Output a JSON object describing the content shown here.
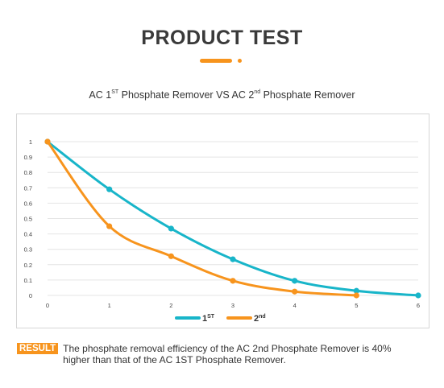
{
  "header": {
    "title": "PRODUCT TEST",
    "accent_color": "#F7941D"
  },
  "chart_data": {
    "type": "line",
    "title_parts": [
      "AC 1",
      "ST",
      " Phosphate Remover VS AC 2",
      "nd",
      " Phosphate Remover"
    ],
    "x": [
      0,
      1,
      2,
      3,
      4,
      5,
      6
    ],
    "x_ticks": [
      "0",
      "1",
      "2",
      "3",
      "4",
      "5",
      "6"
    ],
    "y_ticks": [
      "0",
      "0.1",
      "0.2",
      "0.3",
      "0.4",
      "0.5",
      "0.6",
      "0.7",
      "0.8",
      "0.9",
      "1"
    ],
    "ylim": [
      0,
      1
    ],
    "xlim": [
      0,
      6
    ],
    "grid": true,
    "legend_position": "bottom",
    "series": [
      {
        "name": "1",
        "name_sup": "ST",
        "color": "#18B5C9",
        "x": [
          0,
          1,
          2,
          3,
          4,
          5,
          6
        ],
        "values": [
          1.0,
          0.69,
          0.435,
          0.235,
          0.095,
          0.03,
          0.0
        ]
      },
      {
        "name": "2",
        "name_sup": "nd",
        "color": "#F7941D",
        "x": [
          0,
          1,
          2,
          3,
          4,
          5
        ],
        "values": [
          1.0,
          0.45,
          0.255,
          0.095,
          0.025,
          0.0
        ]
      }
    ]
  },
  "result": {
    "badge": "RESULT",
    "badge_color": "#F7941D",
    "text": "The phosphate removal efficiency of the AC 2nd Phosphate Remover is 40% higher than that of the AC 1ST Phosphate Remover."
  }
}
